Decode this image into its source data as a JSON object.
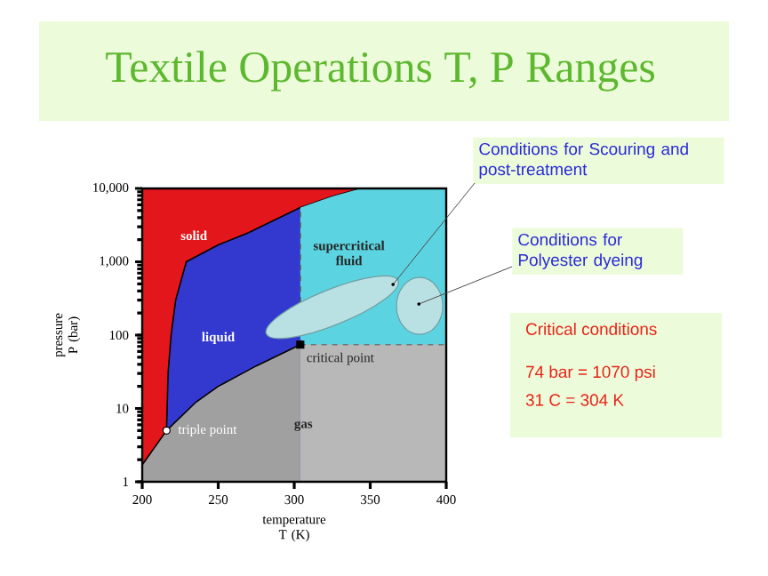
{
  "chart_data": {
    "type": "area",
    "title": "Textile Operations T, P Ranges",
    "xlabel": "temperature T (K)",
    "ylabel": "pressure P (bar)",
    "xlim": [
      200,
      400
    ],
    "xticks": [
      200,
      250,
      300,
      350,
      400
    ],
    "ylim": [
      1,
      10000
    ],
    "yticks": [
      1,
      10,
      100,
      {
        "value": 1000,
        "label": "1,000"
      },
      {
        "value": 10000,
        "label": "10,000"
      }
    ],
    "log": "y",
    "grid": false,
    "series": [
      {
        "color": "#e3161b",
        "x": [
          200,
          344
        ],
        "values": [
          10000,
          10000
        ]
      },
      {
        "color": "#3338cf",
        "line_style": "solid",
        "x": [
          216,
          217,
          219,
          222,
          229,
          250,
          270,
          304,
          325,
          344
        ],
        "values": [
          5,
          30,
          100,
          300,
          1000,
          1700,
          2500,
          5500,
          7800,
          10000
        ]
      },
      {
        "color": "#5cd3e0",
        "x": [
          304,
          325,
          344,
          400
        ],
        "values": [
          5500,
          7800,
          10000,
          10000
        ]
      },
      {
        "color": "#a0a0a0",
        "line_style": "solid",
        "x": [
          200,
          216,
          235,
          250,
          275,
          304
        ],
        "values": [
          1.7,
          5,
          12,
          20,
          38,
          74
        ]
      },
      {
        "color": "#b8b8b8",
        "line_style": "dashed",
        "x": [
          304,
          400
        ],
        "values": [
          74,
          74
        ]
      },
      {
        "type": "line",
        "color": "#555555",
        "line_style": "dashed",
        "x": [
          304,
          304
        ],
        "values": [
          74,
          5500
        ]
      },
      {
        "type": "scatter",
        "color": "#ffffff",
        "marker": "circle",
        "x": [
          216
        ],
        "values": [
          5
        ]
      },
      {
        "type": "scatter",
        "color": "#000000",
        "marker": "square",
        "x": [
          304
        ],
        "values": [
          74
        ]
      }
    ],
    "annotations": [
      "solid",
      "liquid",
      "supercritical fluid",
      "gas",
      {
        "text": "triple point",
        "x": 216,
        "y": 5
      },
      {
        "text": "critical point",
        "x": 304,
        "y": 74
      },
      "Conditions for Scouring and post-treatment",
      "Conditions for Polyester dyeing",
      "Critical conditions",
      "74 bar = 1070 psi",
      "31 C = 304 K"
    ]
  }
}
